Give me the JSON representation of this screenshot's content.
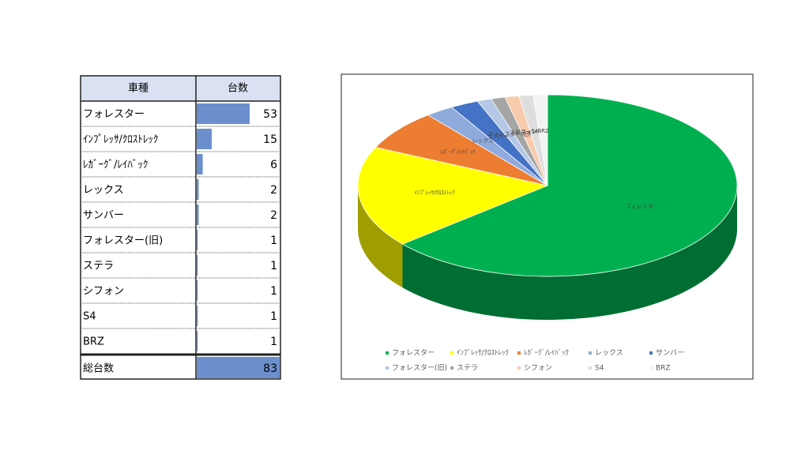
{
  "table": {
    "header": [
      "車種",
      "台数"
    ],
    "total_label": "総台数",
    "total": 83
  },
  "chart_data": {
    "type": "pie",
    "categories": [
      "フォレスター",
      "ｲﾝﾌﾟﾚｯｻ/ｸﾛｽﾄﾚｯｸ",
      "ﾚｶﾞｰｸﾞ/ﾚｲﾊﾞｯｸ",
      "レックス",
      "サンバー",
      "フォレスター(旧)",
      "ステラ",
      "シフォン",
      "S4",
      "BRZ"
    ],
    "values": [
      53,
      15,
      6,
      2,
      2,
      1,
      1,
      1,
      1,
      1
    ],
    "colors": [
      "#00b050",
      "#ffff00",
      "#ed7d31",
      "#8faadc",
      "#4472c4",
      "#b4c7e7",
      "#a5a5a5",
      "#f8cbad",
      "#dedede",
      "#f2f2f2"
    ],
    "legend": "bottom"
  }
}
